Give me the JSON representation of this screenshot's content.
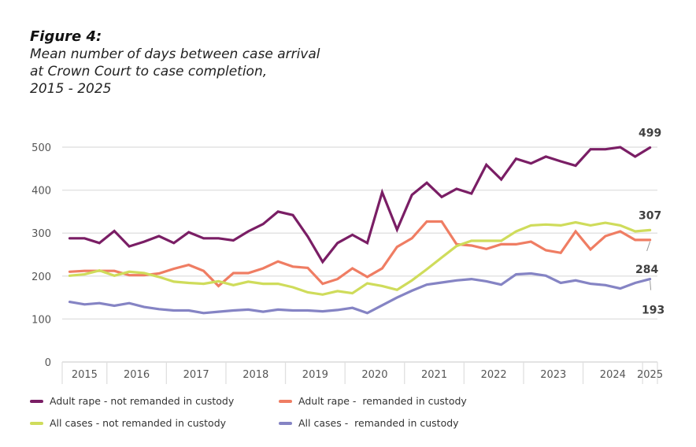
{
  "title": "Figure 4:",
  "subtitle": "Mean number of days between case arrival\nat Crown Court to case completion,\n2015 - 2025",
  "chart_data": {
    "type": "line",
    "title": "Mean number of days between case arrival at Crown Court to case completion, 2015 - 2025",
    "xlabel": "",
    "ylabel": "",
    "ylim": [
      0,
      500
    ],
    "yticks": [
      0,
      100,
      200,
      300,
      400,
      500
    ],
    "grid": true,
    "legend_position": "bottom",
    "x_year_labels": [
      "2015",
      "2016",
      "2017",
      "2018",
      "2019",
      "2020",
      "2021",
      "2022",
      "2023",
      "2024",
      "2025"
    ],
    "x_year_quarters": [
      3,
      4,
      4,
      4,
      4,
      4,
      4,
      4,
      4,
      4,
      1
    ],
    "x": [
      "2015 Q2",
      "2015 Q3",
      "2015 Q4",
      "2016 Q1",
      "2016 Q2",
      "2016 Q3",
      "2016 Q4",
      "2017 Q1",
      "2017 Q2",
      "2017 Q3",
      "2017 Q4",
      "2018 Q1",
      "2018 Q2",
      "2018 Q3",
      "2018 Q4",
      "2019 Q1",
      "2019 Q2",
      "2019 Q3",
      "2019 Q4",
      "2020 Q1",
      "2020 Q2",
      "2020 Q3",
      "2020 Q4",
      "2021 Q1",
      "2021 Q2",
      "2021 Q3",
      "2021 Q4",
      "2022 Q1",
      "2022 Q2",
      "2022 Q3",
      "2022 Q4",
      "2023 Q1",
      "2023 Q2",
      "2023 Q3",
      "2023 Q4",
      "2024 Q1",
      "2024 Q2",
      "2024 Q3",
      "2024 Q4",
      "2025 Q1"
    ],
    "series": [
      {
        "name": "Adult rape - not remanded in custody",
        "color": "#7a1e65",
        "end_label": "499",
        "values": [
          288,
          288,
          277,
          305,
          269,
          280,
          293,
          277,
          302,
          288,
          288,
          283,
          304,
          321,
          350,
          342,
          292,
          233,
          277,
          296,
          277,
          395,
          308,
          389,
          417,
          384,
          403,
          392,
          459,
          425,
          473,
          462,
          478,
          467,
          457,
          495,
          495,
          500,
          478,
          499
        ]
      },
      {
        "name": "Adult rape -  remanded in custody",
        "color": "#ef7d63",
        "end_label": "284",
        "values": [
          210,
          212,
          212,
          212,
          202,
          202,
          206,
          217,
          226,
          212,
          177,
          207,
          207,
          218,
          234,
          222,
          219,
          182,
          193,
          218,
          198,
          218,
          268,
          288,
          327,
          327,
          274,
          271,
          263,
          274,
          274,
          280,
          260,
          254,
          304,
          262,
          293,
          304,
          284,
          284
        ]
      },
      {
        "name": "All cases - not remanded in custody",
        "color": "#cfdc5b",
        "end_label": "307",
        "values": [
          201,
          204,
          213,
          201,
          210,
          207,
          198,
          187,
          184,
          182,
          188,
          179,
          187,
          182,
          182,
          174,
          162,
          157,
          165,
          160,
          183,
          177,
          168,
          190,
          216,
          243,
          270,
          282,
          282,
          282,
          304,
          318,
          320,
          318,
          325,
          318,
          324,
          318,
          304,
          307
        ]
      },
      {
        "name": "All cases -  remanded in custody",
        "color": "#8584c4",
        "end_label": "193",
        "values": [
          140,
          134,
          137,
          131,
          137,
          128,
          123,
          120,
          120,
          114,
          117,
          120,
          122,
          117,
          122,
          120,
          120,
          118,
          121,
          126,
          114,
          132,
          150,
          166,
          180,
          185,
          190,
          193,
          188,
          180,
          204,
          206,
          201,
          184,
          190,
          182,
          179,
          171,
          184,
          193
        ]
      }
    ]
  }
}
